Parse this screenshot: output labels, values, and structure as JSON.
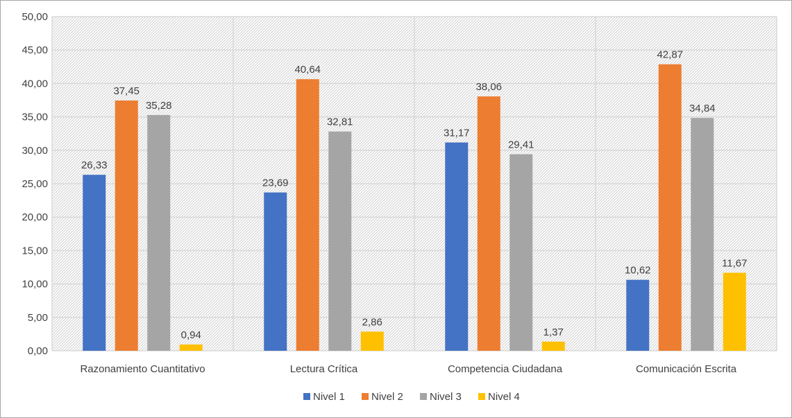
{
  "chart_data": {
    "type": "bar",
    "categories": [
      "Razonamiento Cuantitativo",
      "Lectura Crítica",
      "Competencia Ciudadana",
      "Comunicación Escrita"
    ],
    "series": [
      {
        "name": "Nivel 1",
        "color": "#4472c4",
        "values": [
          26.33,
          23.69,
          31.17,
          10.62
        ],
        "labels": [
          "26,33",
          "23,69",
          "31,17",
          "10,62"
        ]
      },
      {
        "name": "Nivel 2",
        "color": "#ed7d31",
        "values": [
          37.45,
          40.64,
          38.06,
          42.87
        ],
        "labels": [
          "37,45",
          "40,64",
          "38,06",
          "42,87"
        ]
      },
      {
        "name": "Nivel 3",
        "color": "#a5a5a5",
        "values": [
          35.28,
          32.81,
          29.41,
          34.84
        ],
        "labels": [
          "35,28",
          "32,81",
          "29,41",
          "34,84"
        ]
      },
      {
        "name": "Nivel 4",
        "color": "#ffc000",
        "values": [
          0.94,
          2.86,
          1.37,
          11.67
        ],
        "labels": [
          "0,94",
          "2,86",
          "1,37",
          "11,67"
        ]
      }
    ],
    "ylim": [
      0,
      50
    ],
    "yticks": [
      0,
      5,
      10,
      15,
      20,
      25,
      30,
      35,
      40,
      45,
      50
    ],
    "ytick_labels": [
      "0,00",
      "5,00",
      "10,00",
      "15,00",
      "20,00",
      "25,00",
      "30,00",
      "35,00",
      "40,00",
      "45,00",
      "50,00"
    ],
    "grid": true,
    "legend_position": "bottom",
    "title": "",
    "xlabel": "",
    "ylabel": ""
  }
}
